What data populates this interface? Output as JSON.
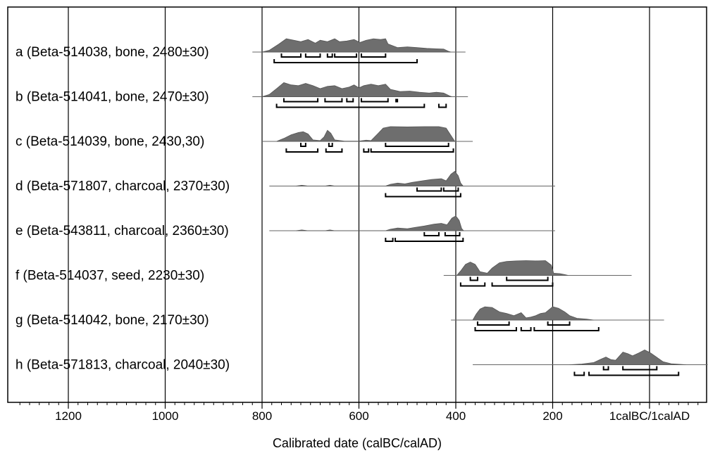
{
  "chart_data": {
    "type": "area",
    "subtype": "radiocarbon calibration probability distributions",
    "xlabel": "Calibrated date (calBC/calAD)",
    "x_tick_labels": [
      "1200",
      "1000",
      "800",
      "600",
      "400",
      "200",
      "1calBC/1calAD"
    ],
    "x_ticks": [
      1200,
      1000,
      800,
      600,
      400,
      200,
      0
    ],
    "xlim": [
      1300,
      -120
    ],
    "x_direction": "calBC descending left to right",
    "grid": true,
    "fill_color": "#6e6e6e",
    "series": [
      {
        "label": "a (Beta-514038, bone, 2480±30)",
        "line": [
          820,
          380
        ],
        "curve": [
          [
            800,
            0
          ],
          [
            785,
            0.12
          ],
          [
            765,
            0.55
          ],
          [
            750,
            0.9
          ],
          [
            735,
            0.8
          ],
          [
            720,
            0.7
          ],
          [
            705,
            0.85
          ],
          [
            690,
            0.6
          ],
          [
            680,
            0.8
          ],
          [
            665,
            0.7
          ],
          [
            650,
            0.9
          ],
          [
            640,
            0.7
          ],
          [
            625,
            0.75
          ],
          [
            610,
            0.85
          ],
          [
            598,
            0.65
          ],
          [
            585,
            0.8
          ],
          [
            570,
            0.9
          ],
          [
            555,
            0.85
          ],
          [
            545,
            0.9
          ],
          [
            540,
            0.55
          ],
          [
            520,
            0.3
          ],
          [
            500,
            0.35
          ],
          [
            480,
            0.3
          ],
          [
            460,
            0.25
          ],
          [
            440,
            0.22
          ],
          [
            425,
            0.2
          ],
          [
            415,
            0.05
          ],
          [
            410,
            0
          ]
        ],
        "bars_68": [
          [
            760,
            720
          ],
          [
            710,
            680
          ],
          [
            665,
            655
          ],
          [
            650,
            605
          ],
          [
            595,
            545
          ]
        ],
        "bars_95": [
          [
            775,
            480
          ]
        ],
        "dots": []
      },
      {
        "label": "b (Beta-514041, bone, 2470±30)",
        "line": [
          820,
          375
        ],
        "curve": [
          [
            800,
            0
          ],
          [
            785,
            0.15
          ],
          [
            770,
            0.55
          ],
          [
            755,
            0.95
          ],
          [
            740,
            0.8
          ],
          [
            725,
            0.75
          ],
          [
            710,
            0.9
          ],
          [
            695,
            0.75
          ],
          [
            680,
            0.55
          ],
          [
            665,
            0.7
          ],
          [
            650,
            0.75
          ],
          [
            635,
            0.55
          ],
          [
            620,
            0.65
          ],
          [
            610,
            0.8
          ],
          [
            600,
            0.6
          ],
          [
            590,
            0.75
          ],
          [
            575,
            0.85
          ],
          [
            560,
            0.75
          ],
          [
            545,
            0.85
          ],
          [
            535,
            0.5
          ],
          [
            515,
            0.35
          ],
          [
            495,
            0.38
          ],
          [
            475,
            0.3
          ],
          [
            455,
            0.25
          ],
          [
            440,
            0.3
          ],
          [
            425,
            0.25
          ],
          [
            413,
            0.05
          ],
          [
            408,
            0
          ]
        ],
        "bars_68": [
          [
            755,
            685
          ],
          [
            670,
            635
          ],
          [
            625,
            612
          ],
          [
            595,
            540
          ]
        ],
        "bars_95": [
          [
            770,
            465
          ],
          [
            435,
            420
          ]
        ],
        "dots": [
          522
        ]
      },
      {
        "label": "c (Beta-514039, bone, 2430,30)",
        "line": [
          800,
          365
        ],
        "curve": [
          [
            770,
            0
          ],
          [
            755,
            0.2
          ],
          [
            740,
            0.45
          ],
          [
            725,
            0.6
          ],
          [
            715,
            0.65
          ],
          [
            705,
            0.5
          ],
          [
            695,
            0.1
          ],
          [
            680,
            0.05
          ],
          [
            672,
            0.3
          ],
          [
            665,
            0.75
          ],
          [
            658,
            0.55
          ],
          [
            650,
            0.1
          ],
          [
            630,
            0.02
          ],
          [
            600,
            0.02
          ],
          [
            585,
            0.08
          ],
          [
            575,
            0.05
          ],
          [
            560,
            0.55
          ],
          [
            550,
            0.9
          ],
          [
            535,
            1
          ],
          [
            500,
            0.98
          ],
          [
            465,
            1
          ],
          [
            435,
            1
          ],
          [
            420,
            0.9
          ],
          [
            410,
            0.4
          ],
          [
            402,
            0
          ]
        ],
        "bars_68": [
          [
            720,
            710
          ],
          [
            662,
            655
          ],
          [
            545,
            415
          ]
        ],
        "bars_95": [
          [
            750,
            685
          ],
          [
            668,
            635
          ],
          [
            590,
            580
          ],
          [
            575,
            405
          ]
        ],
        "dots": []
      },
      {
        "label": "d (Beta-571807, charcoal, 2370±30)",
        "line": [
          785,
          195
        ],
        "curve": [
          [
            730,
            0
          ],
          [
            718,
            0.05
          ],
          [
            705,
            0
          ],
          [
            670,
            0
          ],
          [
            660,
            0.05
          ],
          [
            650,
            0
          ],
          [
            545,
            0
          ],
          [
            535,
            0.12
          ],
          [
            520,
            0.2
          ],
          [
            505,
            0.15
          ],
          [
            490,
            0.25
          ],
          [
            470,
            0.35
          ],
          [
            450,
            0.45
          ],
          [
            430,
            0.5
          ],
          [
            420,
            0.35
          ],
          [
            410,
            0.8
          ],
          [
            402,
            1
          ],
          [
            395,
            0.7
          ],
          [
            390,
            0.2
          ],
          [
            385,
            0
          ]
        ],
        "bars_68": [
          [
            480,
            430
          ],
          [
            425,
            395
          ]
        ],
        "bars_95": [
          [
            545,
            390
          ]
        ],
        "dots": []
      },
      {
        "label": "e (Beta-543811, charcoal, 2360±30)",
        "line": [
          785,
          195
        ],
        "curve": [
          [
            730,
            0
          ],
          [
            718,
            0.05
          ],
          [
            705,
            0
          ],
          [
            670,
            0
          ],
          [
            660,
            0.05
          ],
          [
            650,
            0
          ],
          [
            545,
            0
          ],
          [
            535,
            0.1
          ],
          [
            520,
            0.18
          ],
          [
            500,
            0.14
          ],
          [
            485,
            0.22
          ],
          [
            465,
            0.32
          ],
          [
            445,
            0.45
          ],
          [
            430,
            0.5
          ],
          [
            418,
            0.4
          ],
          [
            408,
            0.85
          ],
          [
            400,
            1
          ],
          [
            393,
            0.7
          ],
          [
            388,
            0.15
          ],
          [
            384,
            0
          ]
        ],
        "bars_68": [
          [
            465,
            435
          ],
          [
            422,
            392
          ]
        ],
        "bars_95": [
          [
            545,
            530
          ],
          [
            525,
            385
          ]
        ],
        "dots": []
      },
      {
        "label": "f (Beta-514037, seed, 2230±30)",
        "line": [
          425,
          37
        ],
        "curve": [
          [
            398,
            0
          ],
          [
            390,
            0.3
          ],
          [
            380,
            0.75
          ],
          [
            370,
            0.9
          ],
          [
            360,
            0.75
          ],
          [
            350,
            0.25
          ],
          [
            335,
            0.15
          ],
          [
            325,
            0.5
          ],
          [
            310,
            0.85
          ],
          [
            295,
            0.95
          ],
          [
            275,
            0.98
          ],
          [
            255,
            1
          ],
          [
            235,
            0.98
          ],
          [
            215,
            1
          ],
          [
            203,
            0.7
          ],
          [
            198,
            0.15
          ],
          [
            185,
            0.12
          ],
          [
            175,
            0.05
          ],
          [
            168,
            0
          ]
        ],
        "bars_68": [
          [
            370,
            355
          ],
          [
            295,
            210
          ]
        ],
        "bars_95": [
          [
            390,
            340
          ],
          [
            325,
            200
          ]
        ],
        "dots": []
      },
      {
        "label": "g (Beta-514042, bone, 2170±30)",
        "line": [
          410,
          -30
        ],
        "curve": [
          [
            365,
            0
          ],
          [
            358,
            0.4
          ],
          [
            350,
            0.75
          ],
          [
            340,
            0.9
          ],
          [
            325,
            0.85
          ],
          [
            310,
            0.55
          ],
          [
            295,
            0.45
          ],
          [
            280,
            0.3
          ],
          [
            265,
            0.5
          ],
          [
            255,
            0.15
          ],
          [
            245,
            0.2
          ],
          [
            235,
            0.3
          ],
          [
            225,
            0.45
          ],
          [
            215,
            0.5
          ],
          [
            200,
            0.9
          ],
          [
            188,
            0.8
          ],
          [
            175,
            0.55
          ],
          [
            165,
            0.3
          ],
          [
            150,
            0.12
          ],
          [
            130,
            0.06
          ],
          [
            115,
            0
          ]
        ],
        "bars_68": [
          [
            355,
            290
          ],
          [
            210,
            165
          ]
        ],
        "bars_95": [
          [
            360,
            275
          ],
          [
            265,
            245
          ],
          [
            238,
            105
          ]
        ],
        "dots": []
      },
      {
        "label": "h (Beta-571813, charcoal, 2040±30)",
        "line": [
          365,
          -120
        ],
        "curve": [
          [
            165,
            0
          ],
          [
            140,
            0.05
          ],
          [
            115,
            0.15
          ],
          [
            100,
            0.38
          ],
          [
            90,
            0.52
          ],
          [
            80,
            0.35
          ],
          [
            70,
            0.3
          ],
          [
            55,
            0.85
          ],
          [
            45,
            0.75
          ],
          [
            35,
            0.6
          ],
          [
            22,
            0.8
          ],
          [
            10,
            1
          ],
          [
            -2,
            0.8
          ],
          [
            -15,
            0.5
          ],
          [
            -28,
            0.2
          ],
          [
            -45,
            0.06
          ],
          [
            -75,
            0
          ]
        ],
        "bars_68": [
          [
            95,
            85
          ],
          [
            55,
            -15
          ]
        ],
        "bars_95": [
          [
            155,
            135
          ],
          [
            125,
            -60
          ]
        ],
        "dots": []
      }
    ]
  }
}
